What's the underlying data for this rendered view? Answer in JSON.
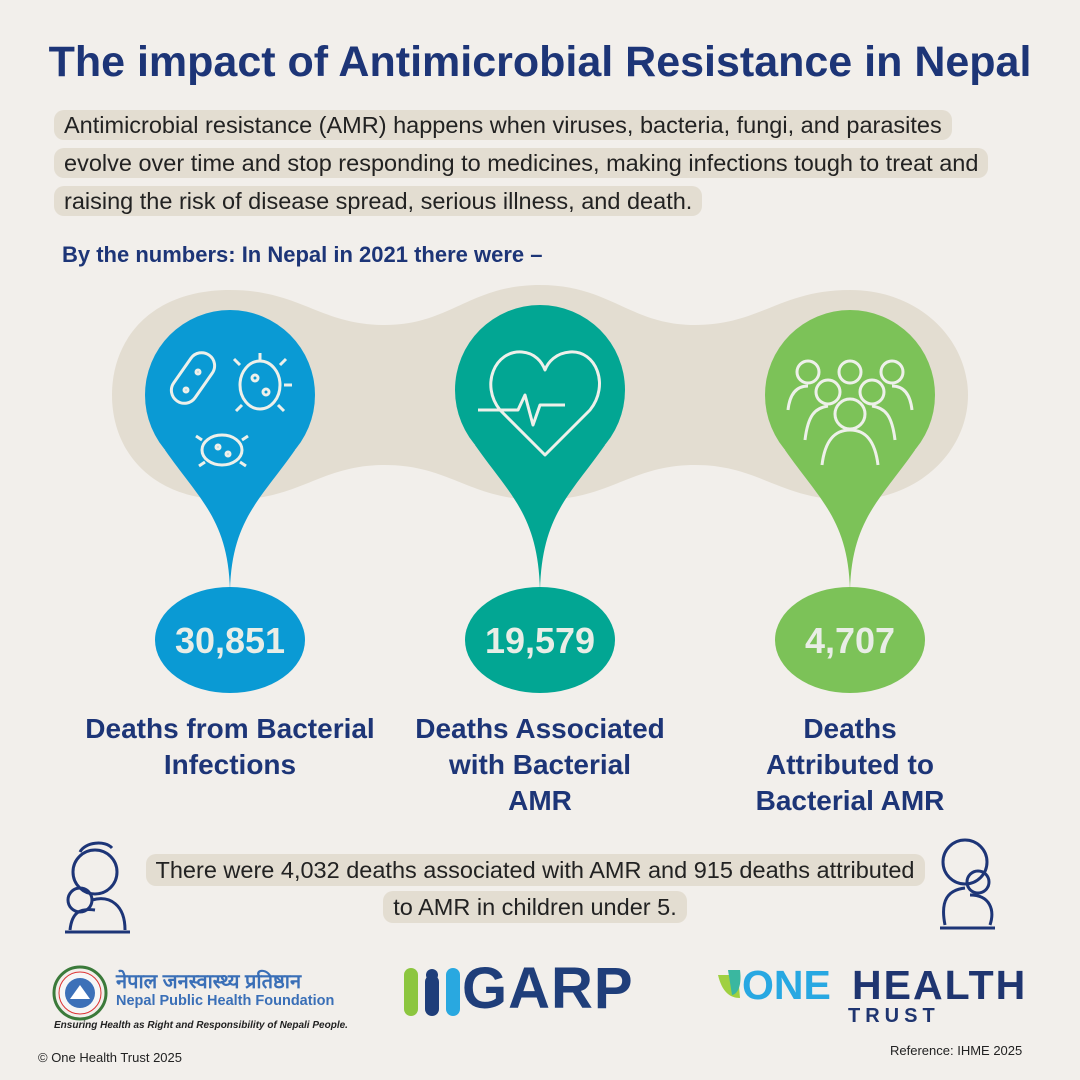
{
  "title": "The impact of Antimicrobial Resistance in Nepal",
  "intro": "Antimicrobial resistance (AMR) happens when viruses, bacteria, fungi, and parasites evolve over time and stop responding to medicines, making infections tough to treat and raising the risk of disease spread, serious illness, and death.",
  "subheading": "By the numbers: In Nepal in 2021 there were –",
  "stats": [
    {
      "value": "30,851",
      "label": "Deaths from Bacterial Infections",
      "icon": "bacteria-icon",
      "color": "#0a9ad4"
    },
    {
      "value": "19,579",
      "label": "Deaths Associated with Bacterial AMR",
      "icon": "heart-pulse-icon",
      "color": "#02a693"
    },
    {
      "value": "4,707",
      "label": "Deaths Attributed to Bacterial AMR",
      "icon": "people-group-icon",
      "color": "#7cc258"
    }
  ],
  "note": "There were 4,032 deaths associated with AMR and 915 deaths attributed to AMR in children under 5.",
  "logos": {
    "nphf": {
      "devanagari": "नेपाल जनस्वास्थ्य प्रतिष्ठान",
      "name": "Nepal Public Health Foundation",
      "tagline": "Ensuring Health as Right and Responsibility of Nepali People."
    },
    "garp": "GARP",
    "onehealth": {
      "one": "ONE",
      "health": "HEALTH",
      "trust": "TRUST"
    }
  },
  "copyright": "© One Health Trust 2025",
  "reference": "Reference: IHME 2025",
  "colors": {
    "title": "#1d3577",
    "background": "#f2efeb",
    "highlight": "#e3ddd1"
  }
}
